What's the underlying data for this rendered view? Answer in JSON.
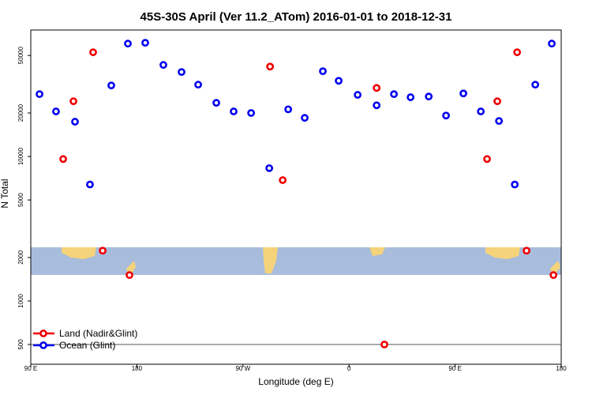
{
  "chart_data": {
    "type": "scatter",
    "title": "45S-30S April (Ver 11.2_ATom)   2016-01-01 to 2018-12-31",
    "x_label": "Longitude (deg E)",
    "y_label": "N Total",
    "log_y": true,
    "legend": "bottom-left",
    "hline": 500,
    "xlim": [
      90,
      540
    ],
    "ylim": [
      365,
      75000
    ],
    "xticks": [
      {
        "value": 90,
        "label": "90 E"
      },
      180,
      {
        "value": 270,
        "label": "90 W"
      },
      {
        "value": 360,
        "label": "0"
      },
      {
        "value": 450,
        "label": "90 E"
      },
      {
        "value": 540,
        "label": "180"
      }
    ],
    "yticks": [
      500,
      1000,
      2000,
      5000,
      10000,
      20000,
      50000
    ],
    "series": [
      {
        "name": "Land (Nadir&Glint)",
        "color": "#ee0000",
        "x": [
          117.5,
          126.2,
          142.9,
          151,
          173.7,
          293,
          303.7,
          383.4,
          390,
          477.1,
          485.8,
          502.6,
          510.6,
          533.4
        ],
        "values": [
          9600,
          24100,
          52600,
          2230,
          1510,
          41900,
          6860,
          29800,
          500,
          9600,
          24100,
          52600,
          2230,
          1510
        ]
      },
      {
        "name": "Ocean (Glint)",
        "color": "#0000ee",
        "x": [
          97.4,
          111.4,
          127.5,
          140.2,
          158.3,
          172.4,
          187.1,
          202.5,
          217.9,
          232,
          247.4,
          262.1,
          276.9,
          292.3,
          308.4,
          322.4,
          337.8,
          351.2,
          367.3,
          383.4,
          398.1,
          412.2,
          427.6,
          442.3,
          457,
          471.8,
          487.2,
          500.6,
          518,
          532
        ],
        "values": [
          27000,
          20500,
          17400,
          6400,
          31000,
          60400,
          61200,
          43000,
          38400,
          31400,
          23500,
          20500,
          20000,
          8300,
          21200,
          18500,
          38900,
          33400,
          26700,
          22600,
          27000,
          25700,
          26000,
          19200,
          27300,
          20500,
          17600,
          6400,
          31400,
          60400
        ]
      }
    ]
  }
}
